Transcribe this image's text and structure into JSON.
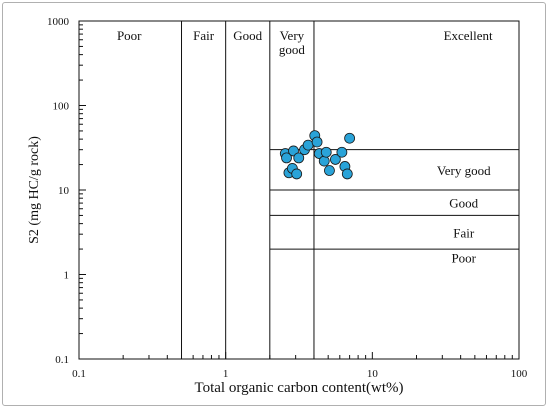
{
  "chart_data": {
    "type": "scatter",
    "title": "",
    "xlabel": "Total organic carbon content(wt%)",
    "ylabel": "S2 (mg HC/g rock)",
    "x_scale": "log",
    "y_scale": "log",
    "xlim": [
      0.1,
      100
    ],
    "ylim": [
      0.1,
      1000
    ],
    "x_ticks": [
      0.1,
      1,
      10,
      100
    ],
    "x_tick_labels": [
      "0.1",
      "1",
      "10",
      "100"
    ],
    "y_ticks": [
      0.1,
      1,
      10,
      100,
      1000
    ],
    "y_tick_labels": [
      "0.1",
      "1",
      "10",
      "100",
      "1000"
    ],
    "grid": false,
    "marker_color": "#2aa3d8",
    "marker_edge": "#1a1a1a",
    "toc_boundaries": [
      0.5,
      1,
      2,
      4
    ],
    "s2_boundaries": [
      2,
      5,
      10,
      30
    ],
    "toc_classes": [
      {
        "label": "Poor",
        "range": [
          0.1,
          0.5
        ]
      },
      {
        "label": "Fair",
        "range": [
          0.5,
          1
        ]
      },
      {
        "label": "Good",
        "range": [
          1,
          2
        ]
      },
      {
        "label": "Very good",
        "range": [
          2,
          4
        ]
      },
      {
        "label": "Excellent",
        "range": [
          4,
          100
        ]
      }
    ],
    "s2_classes": [
      {
        "label": "Very good",
        "range": [
          10,
          30
        ]
      },
      {
        "label": "Good",
        "range": [
          5,
          10
        ]
      },
      {
        "label": "Fair",
        "range": [
          2,
          5
        ]
      },
      {
        "label": "Poor",
        "range": [
          0.1,
          2
        ]
      }
    ],
    "points": [
      {
        "x": 2.55,
        "y": 27
      },
      {
        "x": 2.6,
        "y": 24
      },
      {
        "x": 2.7,
        "y": 16
      },
      {
        "x": 2.85,
        "y": 18
      },
      {
        "x": 2.9,
        "y": 29
      },
      {
        "x": 3.05,
        "y": 15.5
      },
      {
        "x": 3.15,
        "y": 24
      },
      {
        "x": 3.45,
        "y": 30
      },
      {
        "x": 3.65,
        "y": 34
      },
      {
        "x": 4.05,
        "y": 44
      },
      {
        "x": 4.2,
        "y": 37
      },
      {
        "x": 4.35,
        "y": 27
      },
      {
        "x": 4.7,
        "y": 22
      },
      {
        "x": 4.85,
        "y": 28
      },
      {
        "x": 5.1,
        "y": 17
      },
      {
        "x": 5.6,
        "y": 23
      },
      {
        "x": 6.2,
        "y": 28
      },
      {
        "x": 6.5,
        "y": 19
      },
      {
        "x": 6.75,
        "y": 15.5
      },
      {
        "x": 7.0,
        "y": 41
      }
    ]
  }
}
